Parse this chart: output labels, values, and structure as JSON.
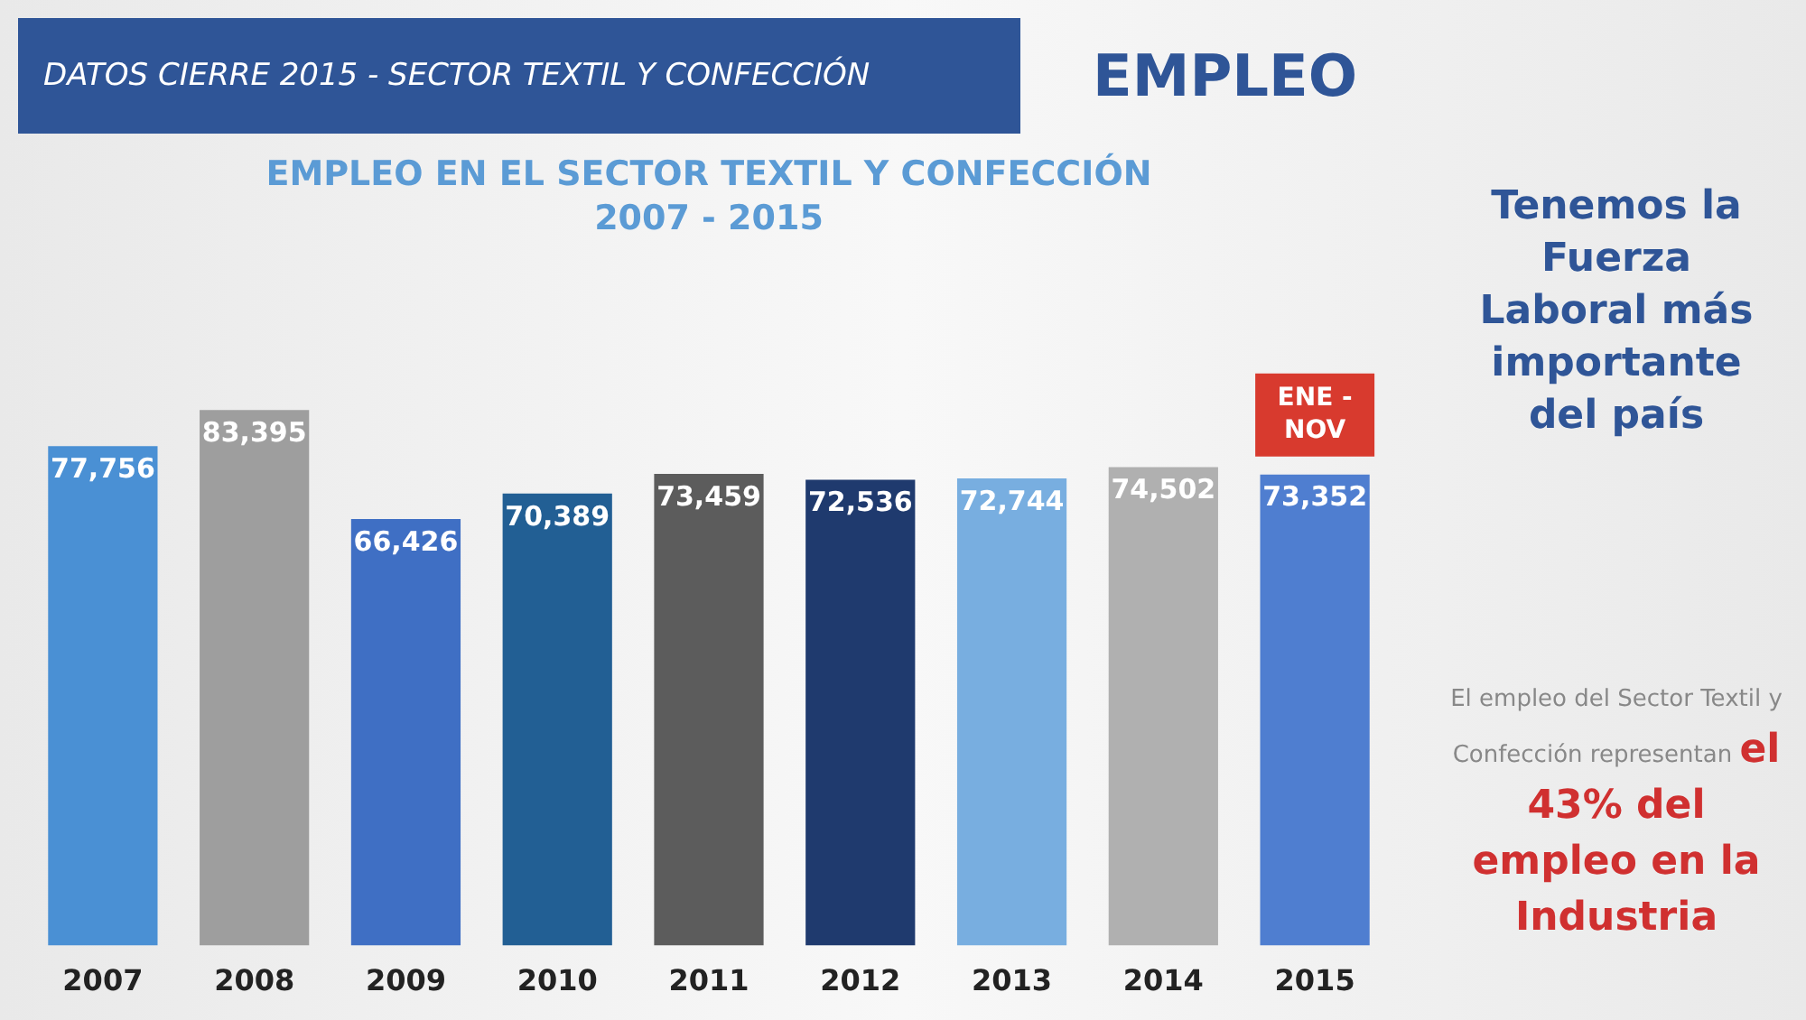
{
  "chart_data": {
    "type": "bar",
    "title": "EMPLEO EN EL SECTOR TEXTIL Y CONFECCIÓN",
    "subtitle": "2007 - 2015",
    "categories": [
      "2007",
      "2008",
      "2009",
      "2010",
      "2011",
      "2012",
      "2013",
      "2014",
      "2015"
    ],
    "values": [
      77756,
      83395,
      66426,
      70389,
      73459,
      72536,
      72744,
      74502,
      73352
    ],
    "value_labels": [
      "77,756",
      "83,395",
      "66,426",
      "70,389",
      "73,459",
      "72,536",
      "72,744",
      "74,502",
      "73,352"
    ],
    "colors": [
      "#4a90d4",
      "#9e9e9e",
      "#3f6fc4",
      "#225f94",
      "#5c5c5c",
      "#1f3a6e",
      "#78aee0",
      "#b0b0b0",
      "#4f7ed0"
    ],
    "annotations": [
      "DATOS CIERRE 2015 - SECTOR TEXTIL Y CONFECCIÓN",
      "EMPLEO",
      "Tenemos la Fuerza Laboral más importante del país",
      "El empleo del Sector Textil y Confección representan",
      "el 43% del empleo en la Industria",
      "ENE - NOV"
    ],
    "legend": false
  }
}
